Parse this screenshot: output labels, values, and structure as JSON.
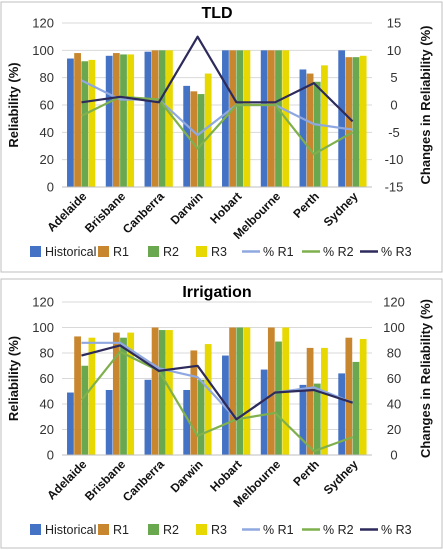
{
  "colors": {
    "Historical": "#4472c4",
    "R1": "#c8872f",
    "R2": "#6aa84f",
    "R3": "#e6d800",
    "% R1": "#8fa8e0",
    "% R2": "#7fb04d",
    "% R3": "#2d2a5c"
  },
  "chart_data": [
    {
      "type": "bar",
      "title": "TLD",
      "ylabel": "Reliability (%)",
      "y2label": "Changes in Reliability (%)",
      "ylim": [
        0,
        120
      ],
      "y2lim": [
        -15,
        15
      ],
      "yticks": [
        0,
        20,
        40,
        60,
        80,
        100,
        120
      ],
      "y2ticks": [
        -15,
        -10,
        -5,
        0,
        5,
        10,
        15
      ],
      "categories": [
        "Adelaide",
        "Brisbane",
        "Canberra",
        "Darwin",
        "Hobart",
        "Melbourne",
        "Perth",
        "Sydney"
      ],
      "grid": true,
      "legend_position": "bottom",
      "series": [
        {
          "name": "Historical",
          "axis": "left",
          "kind": "bar",
          "values": [
            94,
            96,
            99,
            74,
            100,
            100,
            86,
            100
          ]
        },
        {
          "name": "R1",
          "axis": "left",
          "kind": "bar",
          "values": [
            98,
            98,
            100,
            70,
            100,
            100,
            83,
            95
          ]
        },
        {
          "name": "R2",
          "axis": "left",
          "kind": "bar",
          "values": [
            92,
            97,
            100,
            68,
            100,
            100,
            77,
            95
          ]
        },
        {
          "name": "R3",
          "axis": "left",
          "kind": "bar",
          "values": [
            93,
            97,
            100,
            83,
            100,
            100,
            89,
            96
          ]
        },
        {
          "name": "% R1",
          "axis": "right",
          "kind": "line",
          "values": [
            4.5,
            1.0,
            1.0,
            -5.5,
            0,
            0,
            -3.5,
            -4.5
          ]
        },
        {
          "name": "% R2",
          "axis": "right",
          "kind": "line",
          "values": [
            -2.0,
            1.5,
            1.0,
            -8.0,
            0,
            0,
            -9.0,
            -5.0
          ]
        },
        {
          "name": "% R3",
          "axis": "right",
          "kind": "line",
          "values": [
            0.5,
            1.5,
            0.5,
            12.5,
            0.5,
            0.5,
            4.0,
            -3.0
          ]
        }
      ]
    },
    {
      "type": "bar",
      "title": "Irrigation",
      "ylabel": "Reliability (%)",
      "y2label": "Changes in Reliability (%)",
      "ylim": [
        0,
        120
      ],
      "y2lim": [
        0,
        120
      ],
      "yticks": [
        0,
        20,
        40,
        60,
        80,
        100,
        120
      ],
      "y2ticks": [
        0,
        20,
        40,
        60,
        80,
        100,
        120
      ],
      "categories": [
        "Adelaide",
        "Brisbane",
        "Canberra",
        "Darwin",
        "Hobart",
        "Melbourne",
        "Perth",
        "Sydney"
      ],
      "grid": true,
      "legend_position": "bottom",
      "series": [
        {
          "name": "Historical",
          "axis": "left",
          "kind": "bar",
          "values": [
            49,
            51,
            59,
            51,
            78,
            67,
            55,
            64
          ]
        },
        {
          "name": "R1",
          "axis": "left",
          "kind": "bar",
          "values": [
            93,
            96,
            100,
            82,
            100,
            100,
            84,
            92
          ]
        },
        {
          "name": "R2",
          "axis": "left",
          "kind": "bar",
          "values": [
            70,
            92,
            98,
            59,
            100,
            89,
            56,
            73
          ]
        },
        {
          "name": "R3",
          "axis": "left",
          "kind": "bar",
          "values": [
            92,
            96,
            98,
            87,
            100,
            100,
            84,
            91
          ]
        },
        {
          "name": "% R1",
          "axis": "right",
          "kind": "line",
          "values": [
            88,
            88,
            68,
            61,
            28,
            49,
            53,
            41
          ]
        },
        {
          "name": "% R2",
          "axis": "right",
          "kind": "line",
          "values": [
            43,
            81,
            66,
            15,
            28,
            33,
            3,
            14
          ]
        },
        {
          "name": "% R3",
          "axis": "right",
          "kind": "line",
          "values": [
            78,
            86,
            66,
            70,
            28,
            49,
            51,
            41
          ]
        }
      ]
    }
  ]
}
